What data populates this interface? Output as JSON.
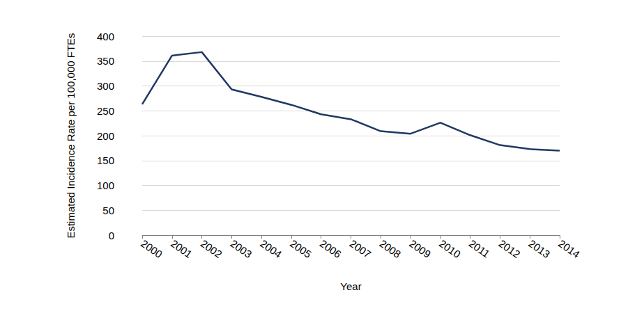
{
  "chart_data": {
    "type": "line",
    "x_label": "Year",
    "y_label": "Estimated Incidence Rate per 100,000 FTEs",
    "categories": [
      "2000",
      "2001",
      "2002",
      "2003",
      "2004",
      "2005",
      "2006",
      "2007",
      "2008",
      "2009",
      "2010",
      "2011",
      "2012",
      "2013",
      "2014"
    ],
    "values": [
      263,
      361,
      368,
      293,
      278,
      262,
      243,
      233,
      209,
      204,
      226,
      201,
      181,
      173,
      170
    ],
    "color": "#203864",
    "ylim": [
      0,
      400
    ],
    "yticks": [
      0,
      50,
      100,
      150,
      200,
      250,
      300,
      350,
      400
    ],
    "grid": true
  }
}
